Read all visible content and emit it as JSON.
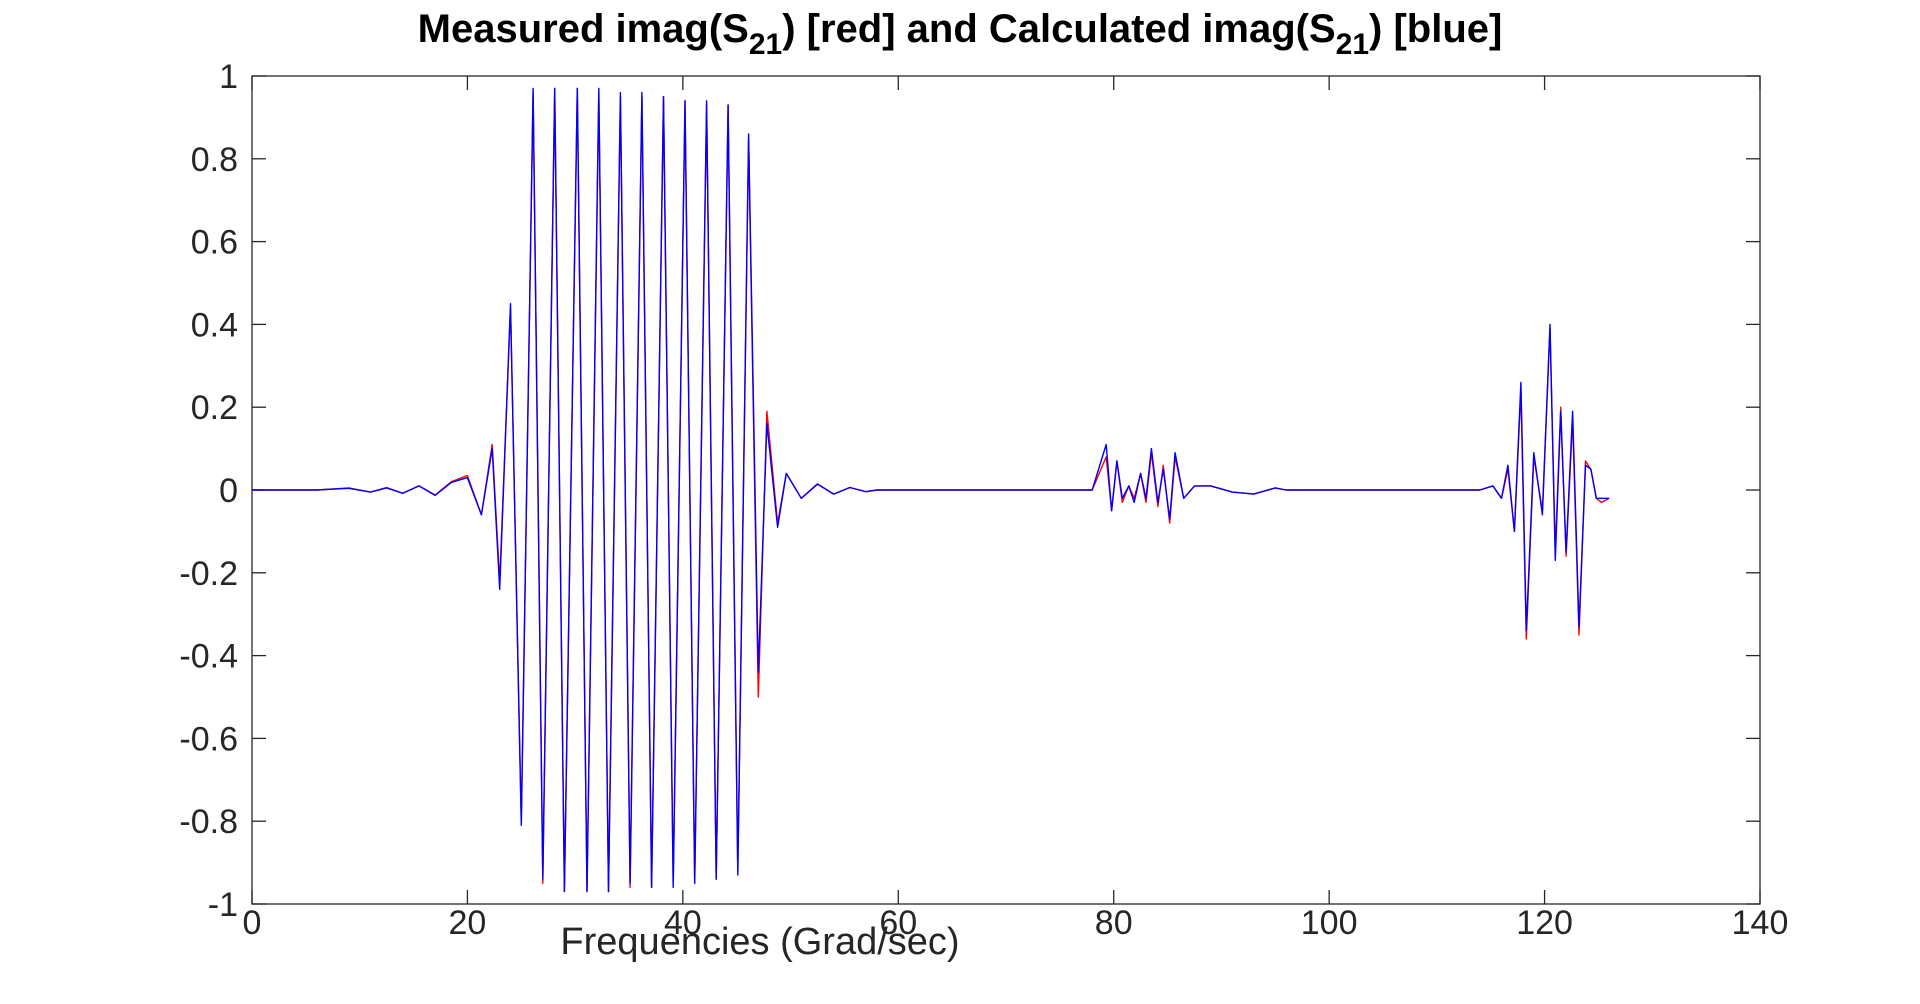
{
  "chart_data": {
    "type": "line",
    "title": {
      "p1": "Measured imag(S",
      "sub1": "21",
      "p2": ") [red] and Calculated imag(S",
      "sub2": "21",
      "p3": ") [blue]"
    },
    "xlabel": "Frequencies (Grad/sec)",
    "ylabel": "",
    "xlim": [
      0,
      140
    ],
    "ylim": [
      -1,
      1
    ],
    "xticks": [
      0,
      20,
      40,
      60,
      80,
      100,
      120,
      140
    ],
    "yticks": [
      -1,
      -0.8,
      -0.6,
      -0.4,
      -0.2,
      0,
      0.2,
      0.4,
      0.6,
      0.8,
      1
    ],
    "xtick_labels": [
      "0",
      "20",
      "40",
      "60",
      "80",
      "100",
      "120",
      "140"
    ],
    "ytick_labels": [
      "-1",
      "-0.8",
      "-0.6",
      "-0.4",
      "-0.2",
      "0",
      "0.2",
      "0.4",
      "0.6",
      "0.8",
      "1"
    ],
    "grid": false,
    "series": [
      {
        "color": "#ff0000",
        "x": [
          0,
          6,
          9,
          11,
          12.5,
          14,
          15.5,
          17,
          18.5,
          20,
          21.3,
          22.3,
          23,
          24,
          25,
          26.1,
          27,
          28.1,
          29,
          30.2,
          31.1,
          32.2,
          33.1,
          34.2,
          35.1,
          36.2,
          37.1,
          38.2,
          39.1,
          40.2,
          41.1,
          42.2,
          43.1,
          44.2,
          45.1,
          46.1,
          47,
          47.8,
          48.8,
          49.6,
          51,
          52.5,
          54,
          55.5,
          57,
          58,
          60,
          70,
          78,
          79.3,
          79.8,
          80.3,
          80.8,
          81.4,
          81.9,
          82.5,
          83,
          83.5,
          84.1,
          84.6,
          85.2,
          85.7,
          86.5,
          87.5,
          89,
          91,
          93,
          95,
          96,
          100,
          110,
          112,
          114,
          115.2,
          116,
          116.6,
          117.2,
          117.8,
          118.3,
          119,
          119.8,
          120.5,
          121,
          121.5,
          122,
          122.6,
          123.2,
          123.8,
          124.3,
          124.8,
          125.3,
          126
        ],
        "y": [
          0,
          0,
          0.005,
          -0.005,
          0.006,
          -0.008,
          0.01,
          -0.012,
          0.02,
          0.035,
          -0.06,
          0.11,
          -0.22,
          0.44,
          -0.8,
          0.96,
          -0.95,
          0.97,
          -0.97,
          0.97,
          -0.97,
          0.96,
          -0.97,
          0.95,
          -0.96,
          0.95,
          -0.96,
          0.95,
          -0.95,
          0.94,
          -0.95,
          0.93,
          -0.94,
          0.93,
          -0.92,
          0.85,
          -0.5,
          0.19,
          -0.08,
          0.04,
          -0.02,
          0.015,
          -0.01,
          0.006,
          -0.004,
          0,
          0,
          0,
          0,
          0.08,
          -0.05,
          0.07,
          -0.03,
          0.01,
          -0.02,
          0.04,
          -0.03,
          0.09,
          -0.04,
          0.06,
          -0.08,
          0.08,
          -0.02,
          0.01,
          0.01,
          -0.005,
          -0.01,
          0.005,
          0,
          0,
          0,
          0,
          0,
          0.01,
          -0.02,
          0.05,
          -0.1,
          0.24,
          -0.36,
          0.08,
          -0.05,
          0.39,
          -0.15,
          0.2,
          -0.16,
          0.17,
          -0.35,
          0.07,
          0.05,
          -0.02,
          -0.03,
          -0.02
        ]
      },
      {
        "color": "#0000ff",
        "x": [
          0,
          6,
          9,
          11,
          12.5,
          14,
          15.5,
          17,
          18.5,
          20,
          21.3,
          22.3,
          23,
          24,
          25,
          26.1,
          27,
          28.1,
          29,
          30.2,
          31.1,
          32.2,
          33.1,
          34.2,
          35.1,
          36.2,
          37.1,
          38.2,
          39.1,
          40.2,
          41.1,
          42.2,
          43.1,
          44.2,
          45.1,
          46.1,
          47,
          47.8,
          48.8,
          49.6,
          51,
          52.5,
          54,
          55.5,
          57,
          58,
          60,
          70,
          78,
          79.3,
          79.8,
          80.3,
          80.8,
          81.4,
          81.9,
          82.5,
          83,
          83.5,
          84.1,
          84.6,
          85.2,
          85.7,
          86.5,
          87.5,
          89,
          91,
          93,
          95,
          96,
          100,
          110,
          112,
          114,
          115.2,
          116,
          116.6,
          117.2,
          117.8,
          118.3,
          119,
          119.8,
          120.5,
          121,
          121.5,
          122,
          122.6,
          123.2,
          123.8,
          124.3,
          124.8,
          125.3,
          126
        ],
        "y": [
          0,
          0,
          0.004,
          -0.005,
          0.005,
          -0.008,
          0.01,
          -0.013,
          0.018,
          0.03,
          -0.06,
          0.1,
          -0.24,
          0.45,
          -0.81,
          0.97,
          -0.94,
          0.97,
          -0.97,
          0.97,
          -0.97,
          0.97,
          -0.97,
          0.96,
          -0.95,
          0.96,
          -0.96,
          0.95,
          -0.96,
          0.94,
          -0.95,
          0.94,
          -0.94,
          0.93,
          -0.93,
          0.86,
          -0.44,
          0.16,
          -0.09,
          0.04,
          -0.02,
          0.014,
          -0.01,
          0.006,
          -0.004,
          0,
          0,
          0,
          0,
          0.11,
          -0.05,
          0.07,
          -0.02,
          0.01,
          -0.03,
          0.04,
          -0.02,
          0.1,
          -0.03,
          0.05,
          -0.07,
          0.09,
          -0.02,
          0.01,
          0.01,
          -0.005,
          -0.01,
          0.005,
          0,
          0,
          0,
          0,
          0,
          0.01,
          -0.02,
          0.06,
          -0.1,
          0.26,
          -0.34,
          0.09,
          -0.06,
          0.4,
          -0.17,
          0.19,
          -0.15,
          0.19,
          -0.33,
          0.06,
          0.05,
          -0.02,
          -0.02,
          -0.02
        ]
      }
    ]
  }
}
